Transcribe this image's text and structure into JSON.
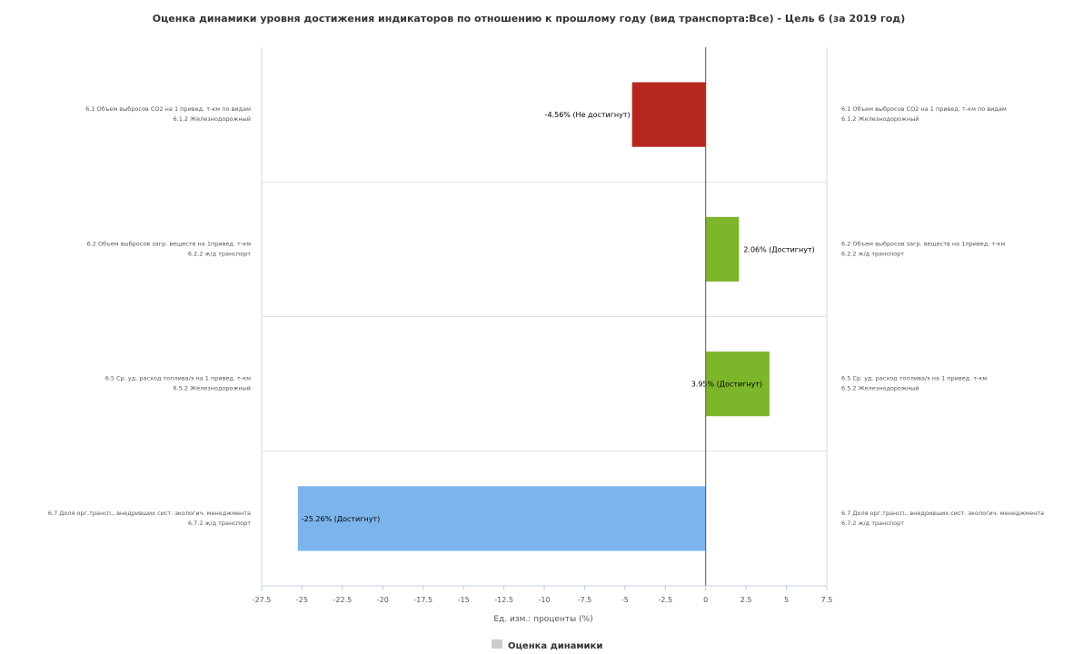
{
  "chart_data": {
    "type": "bar",
    "orientation": "horizontal",
    "title": "Оценка динамики уровня достижения индикаторов по отношению к прошлому году (вид транспорта:Все) - Цель 6 (за 2019 год)",
    "xlabel": "Ед. изм.: проценты (%)",
    "xlim": [
      -27.5,
      7.5
    ],
    "x_ticks": [
      "-27.5",
      "-25",
      "-22.5",
      "-20",
      "-17.5",
      "-15",
      "-12.5",
      "-10",
      "-7.5",
      "-5",
      "-2.5",
      "0",
      "2.5",
      "5",
      "7.5"
    ],
    "x_tick_values": [
      -27.5,
      -25,
      -22.5,
      -20,
      -17.5,
      -15,
      -12.5,
      -10,
      -7.5,
      -5,
      -2.5,
      0,
      2.5,
      5,
      7.5
    ],
    "grid": true,
    "legend": {
      "position": "bottom-center",
      "label": "Оценка динамики",
      "color": "#cccccc"
    },
    "categories": [
      {
        "line1": "6.1 Объем выбросов CO2 на 1 привед. т-км по видам",
        "line2": "6.1.2 Железнодорожный",
        "right_line1": "6.1 Объем выбросов CO2 на 1 привед. т-км по видам",
        "right_line2": "6.1.2 Железнодорожный"
      },
      {
        "line1": "6.2 Объем выбросов загр. веществ на 1привед. т-км",
        "line2": "6.2.2 ж/д транспорт",
        "right_line1": "6.2 Объем выбросов загр. веществ на 1привед. т-км",
        "right_line2": "6.2.2 ж/д транспорт"
      },
      {
        "line1": "6.5 Ср. уд. расход топлива/э на 1 привед. т-км",
        "line2": "6.5.2 Железнодорожный",
        "right_line1": "6.5 Ср. уд. расход топлива/э на 1 привед. т-км",
        "right_line2": "6.5.2 Железнодорожный"
      },
      {
        "line1": "6.7 Доля орг.трансп., внедривших сист. экологич. менеджмента",
        "line2": "6.7.2 ж/д транспорт",
        "right_line1": "6.7 Доля орг.трансп., внедривших сист. экологич. менеджмента",
        "right_line2": "6.7.2 ж/д транспорт"
      }
    ],
    "values": [
      -4.56,
      2.06,
      3.95,
      -25.26
    ],
    "data_labels": [
      "-4.56% (Не достигнут)",
      "2.06% (Достигнут)",
      "3.95% (Достигнут)",
      "-25.26% (Достигнут)"
    ],
    "colors": [
      "#b5271e",
      "#7db52b",
      "#7db52b",
      "#7cb5ec"
    ]
  }
}
